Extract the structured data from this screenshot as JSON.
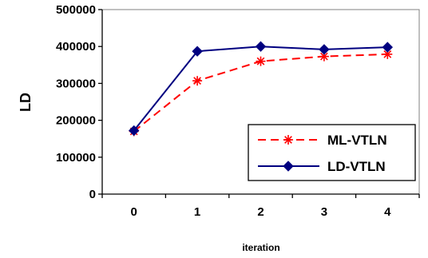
{
  "chart_data": {
    "type": "line",
    "title": "",
    "xlabel": "iteration",
    "ylabel": "LD",
    "categories": [
      "0",
      "1",
      "2",
      "3",
      "4"
    ],
    "ylim": [
      0,
      500000
    ],
    "yticks": [
      "0",
      "100000",
      "200000",
      "300000",
      "400000",
      "500000"
    ],
    "grid": false,
    "legend_position": "bottom-right",
    "series": [
      {
        "name": "ML-VTLN",
        "values": [
          170000,
          307000,
          360000,
          373000,
          379000
        ],
        "color": "#ff0000",
        "style": "dashed",
        "marker": "asterisk"
      },
      {
        "name": "LD-VTLN",
        "values": [
          172000,
          387000,
          400000,
          392000,
          398000
        ],
        "color": "#000080",
        "style": "solid",
        "marker": "diamond"
      }
    ]
  }
}
